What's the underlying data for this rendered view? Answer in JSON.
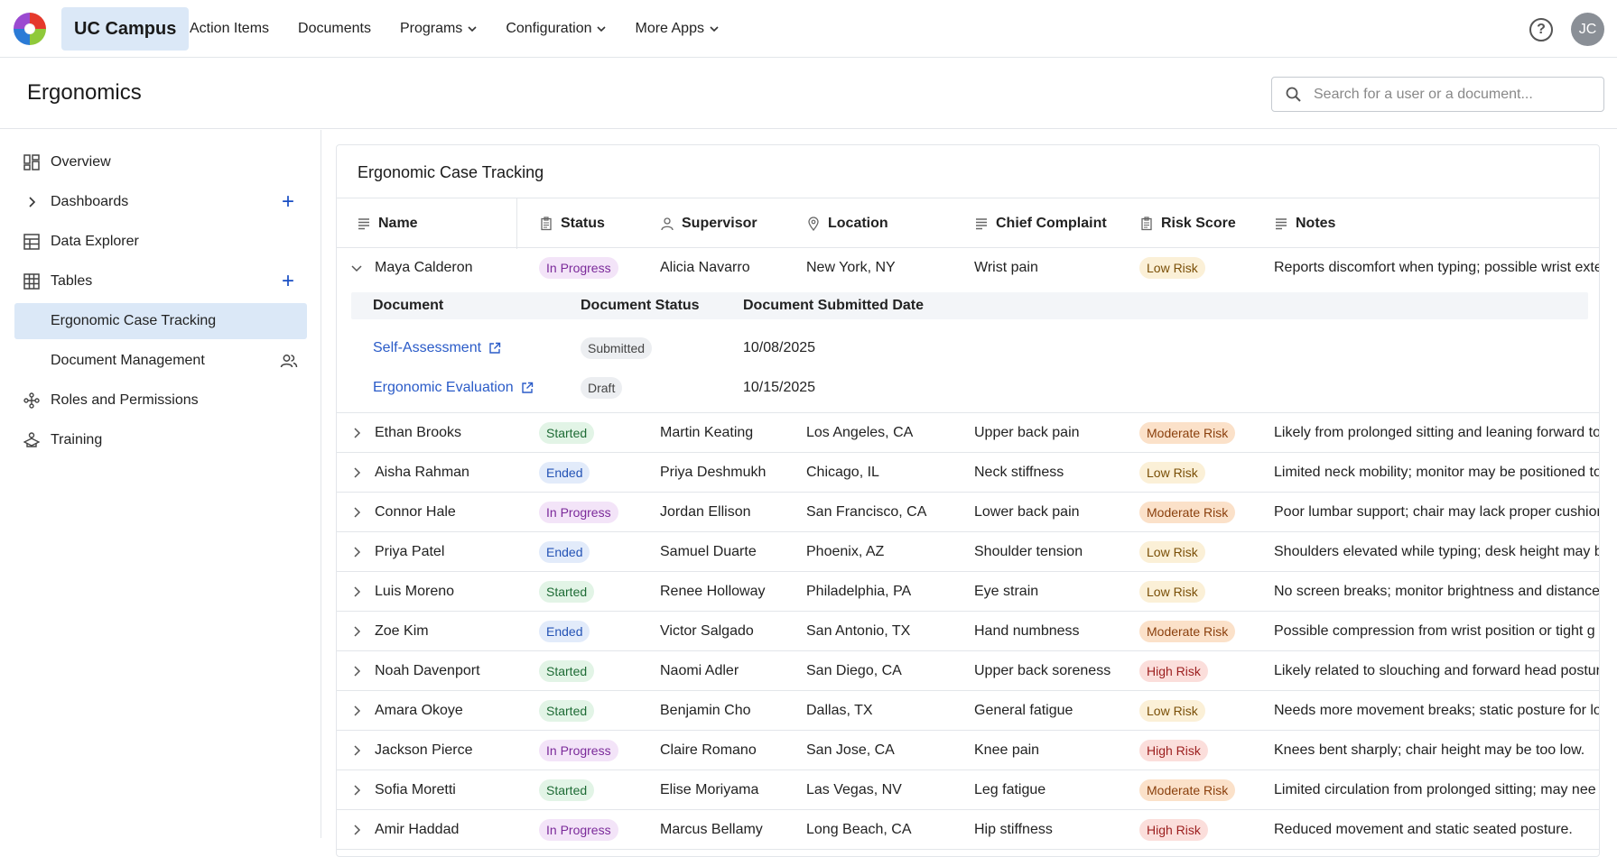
{
  "brand": "UC Campus",
  "nav": [
    {
      "label": "Action Items",
      "dropdown": false
    },
    {
      "label": "Documents",
      "dropdown": false
    },
    {
      "label": "Programs",
      "dropdown": true
    },
    {
      "label": "Configuration",
      "dropdown": true
    },
    {
      "label": "More Apps",
      "dropdown": true
    }
  ],
  "help_glyph": "?",
  "user_initials": "JC",
  "page_title": "Ergonomics",
  "search": {
    "placeholder": "Search for a user or a document..."
  },
  "sidebar": {
    "overview": "Overview",
    "dashboards": "Dashboards",
    "data_explorer": "Data Explorer",
    "tables": "Tables",
    "ergonomic_case_tracking": "Ergonomic Case Tracking",
    "document_management": "Document Management",
    "roles": "Roles and Permissions",
    "training": "Training"
  },
  "card_title": "Ergonomic Case Tracking",
  "columns": {
    "name": "Name",
    "status": "Status",
    "supervisor": "Supervisor",
    "location": "Location",
    "complaint": "Chief Complaint",
    "risk": "Risk Score",
    "notes": "Notes"
  },
  "subtable": {
    "headers": {
      "document": "Document",
      "status": "Document Status",
      "date": "Document Submitted Date"
    },
    "rows": [
      {
        "document": "Self-Assessment",
        "status": "Submitted",
        "date": "10/08/2025"
      },
      {
        "document": "Ergonomic Evaluation",
        "status": "Draft",
        "date": "10/15/2025"
      }
    ]
  },
  "rows": [
    {
      "name": "Maya Calderon",
      "status": "In Progress",
      "supervisor": "Alicia Navarro",
      "location": "New York, NY",
      "complaint": "Wrist pain",
      "risk": "Low Risk",
      "notes": "Reports discomfort when typing; possible wrist exte"
    },
    {
      "name": "Ethan Brooks",
      "status": "Started",
      "supervisor": "Martin Keating",
      "location": "Los Angeles, CA",
      "complaint": "Upper back pain",
      "risk": "Moderate Risk",
      "notes": "Likely from prolonged sitting and leaning forward to"
    },
    {
      "name": "Aisha Rahman",
      "status": "Ended",
      "supervisor": "Priya Deshmukh",
      "location": "Chicago, IL",
      "complaint": "Neck stiffness",
      "risk": "Low Risk",
      "notes": "Limited neck mobility; monitor may be positioned to"
    },
    {
      "name": "Connor Hale",
      "status": "In Progress",
      "supervisor": "Jordan Ellison",
      "location": "San Francisco, CA",
      "complaint": "Lower back pain",
      "risk": "Moderate Risk",
      "notes": "Poor lumbar support; chair may lack proper cushion"
    },
    {
      "name": "Priya Patel",
      "status": "Ended",
      "supervisor": "Samuel Duarte",
      "location": "Phoenix, AZ",
      "complaint": "Shoulder tension",
      "risk": "Low Risk",
      "notes": "Shoulders elevated while typing; desk height may be"
    },
    {
      "name": "Luis Moreno",
      "status": "Started",
      "supervisor": "Renee Holloway",
      "location": "Philadelphia, PA",
      "complaint": "Eye strain",
      "risk": "Low Risk",
      "notes": "No screen breaks; monitor brightness and distance"
    },
    {
      "name": "Zoe Kim",
      "status": "Ended",
      "supervisor": "Victor Salgado",
      "location": "San Antonio, TX",
      "complaint": "Hand numbness",
      "risk": "Moderate Risk",
      "notes": "Possible compression from wrist position or tight g"
    },
    {
      "name": "Noah Davenport",
      "status": "Started",
      "supervisor": "Naomi Adler",
      "location": "San Diego, CA",
      "complaint": "Upper back soreness",
      "risk": "High Risk",
      "notes": "Likely related to slouching and forward head postur"
    },
    {
      "name": "Amara Okoye",
      "status": "Started",
      "supervisor": "Benjamin Cho",
      "location": "Dallas, TX",
      "complaint": "General fatigue",
      "risk": "Low Risk",
      "notes": "Needs more movement breaks; static posture for lo"
    },
    {
      "name": "Jackson Pierce",
      "status": "In Progress",
      "supervisor": "Claire Romano",
      "location": "San Jose, CA",
      "complaint": "Knee pain",
      "risk": "High Risk",
      "notes": "Knees bent sharply; chair height may be too low."
    },
    {
      "name": "Sofia Moretti",
      "status": "Started",
      "supervisor": "Elise Moriyama",
      "location": "Las Vegas, NV",
      "complaint": "Leg fatigue",
      "risk": "Moderate Risk",
      "notes": "Limited circulation from prolonged sitting; may nee"
    },
    {
      "name": "Amir Haddad",
      "status": "In Progress",
      "supervisor": "Marcus Bellamy",
      "location": "Long Beach, CA",
      "complaint": "Hip stiffness",
      "risk": "High Risk",
      "notes": "Reduced movement and static seated posture."
    }
  ],
  "colors": {
    "accent": "#1a4fc4",
    "brand_bg": "#dbe8f7",
    "link": "#2a5bc8"
  }
}
